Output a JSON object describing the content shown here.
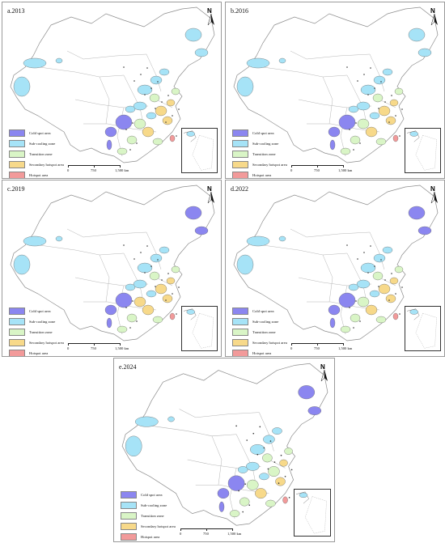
{
  "colors": {
    "cold_spot": "#8b86f0",
    "sub_cooling": "#a6e3f7",
    "transition": "#d9f5c6",
    "secondary_hotspot": "#f7d98a",
    "hotspot": "#f29a9a",
    "boundary": "#8c8c8c"
  },
  "legend": [
    {
      "label": "Cold spot area",
      "color_key": "cold_spot"
    },
    {
      "label": "Sub-cooling zone",
      "color_key": "sub_cooling"
    },
    {
      "label": "Transition zone",
      "color_key": "transition"
    },
    {
      "label": "Secondary hotspot area",
      "color_key": "secondary_hotspot"
    },
    {
      "label": "Hotspot area",
      "color_key": "hotspot"
    }
  ],
  "scale": {
    "ticks": [
      "0",
      "750",
      "1,500 km"
    ]
  },
  "north_label": "N",
  "panels": [
    {
      "title": "a.2013"
    },
    {
      "title": "b.2016"
    },
    {
      "title": "c.2019"
    },
    {
      "title": "d.2022"
    },
    {
      "title": "e.2024"
    }
  ]
}
